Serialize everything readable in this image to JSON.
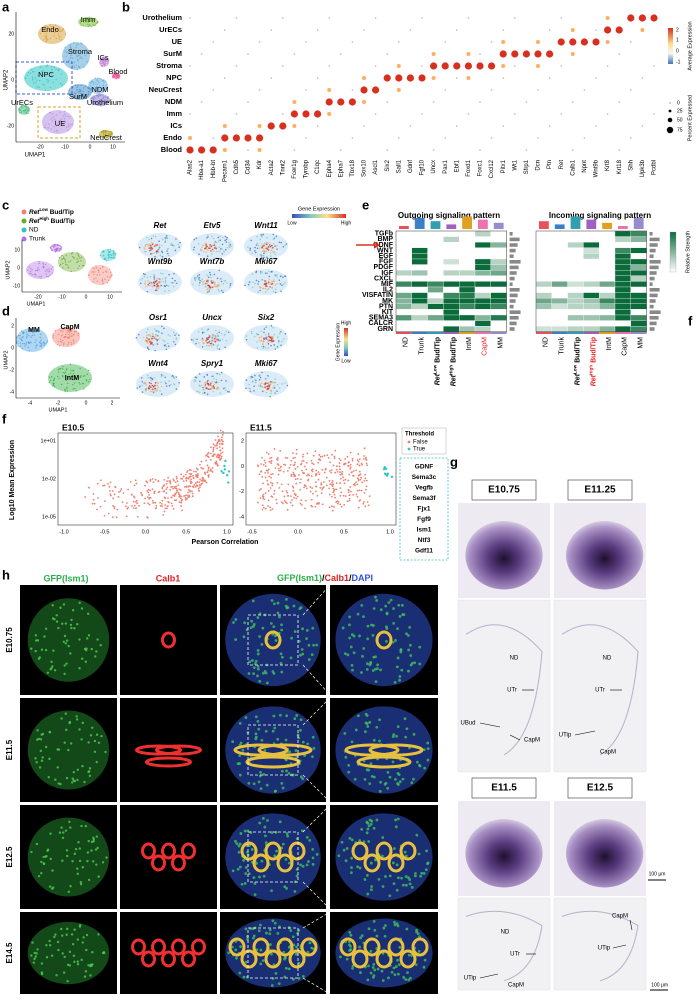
{
  "panel_labels": [
    "a",
    "b",
    "c",
    "d",
    "e",
    "f",
    "g",
    "h",
    "f"
  ],
  "a": {
    "clusters": [
      "Endo",
      "Imm",
      "Stroma",
      "ICs",
      "Blood",
      "NPC",
      "NDM",
      "SurM",
      "Urothelium",
      "UrECs",
      "UE",
      "NeuCrest"
    ],
    "x_axis": "UMAP1",
    "y_axis": "UMAP2",
    "xticks": [
      "-20",
      "-10",
      "0",
      "10"
    ],
    "yticks": [
      "20",
      "0",
      "-20"
    ]
  },
  "b": {
    "rows": [
      "Urothelium",
      "UrECs",
      "UE",
      "SurM",
      "Stroma",
      "NPC",
      "NeuCrest",
      "NDM",
      "Imm",
      "ICs",
      "Endo",
      "Blood"
    ],
    "genes": [
      "Alas2",
      "Hba-a1",
      "Hbb-bt",
      "Pecam1",
      "Cdh5",
      "Cd34",
      "Kdr",
      "Acta2",
      "Tnnt2",
      "Fcer1g",
      "Tyrobp",
      "C1qc",
      "Epha4",
      "Epha7",
      "Tbx18",
      "Sox10",
      "Ascl1",
      "Six2",
      "Sall1",
      "Gdnf",
      "Fgf10",
      "Uncx",
      "Pax1",
      "Ebf1",
      "Foxd1",
      "Foxc1",
      "Cxcl12",
      "Pitx1",
      "Wt1",
      "Sfrp1",
      "Dcn",
      "Ptn",
      "Ret",
      "Calb1",
      "Npnt",
      "Wnt9b",
      "Krt8",
      "Krt18",
      "Shh",
      "Upk3b",
      "Pcdbl"
    ],
    "color_legend": {
      "title": "Average Expression",
      "ticks": [
        "2",
        "1",
        "0",
        "-1"
      ]
    },
    "size_legend": {
      "title": "Percent Expressed",
      "ticks": [
        "0",
        "25",
        "50",
        "75"
      ]
    }
  },
  "c": {
    "legend": [
      {
        "gene": "Ret",
        "sup": "Low",
        "rest": "Bud/Tip"
      },
      {
        "gene": "Ret",
        "sup": "High",
        "rest": "Bud/Tip"
      },
      {
        "text": "ND"
      },
      {
        "text": "Trunk"
      }
    ],
    "x_axis": "UMAP1",
    "y_axis": "UMAP2",
    "xticks": [
      "-20",
      "-10",
      "0",
      "10"
    ],
    "yticks": [
      "10",
      "0",
      "-10"
    ],
    "genes": [
      "Ret",
      "Etv5",
      "Wnt11",
      "Wnt9b",
      "Wnt7b",
      "Mki67"
    ],
    "scale": {
      "title": "Gene Expression",
      "low": "Low",
      "high": "High"
    }
  },
  "d": {
    "clusters": [
      "MM",
      "CapM",
      "IntM"
    ],
    "x_axis": "UMAP1",
    "y_axis": "UMAP2",
    "xticks": [
      "-4",
      "-2",
      "0",
      "2"
    ],
    "yticks": [
      "2",
      "0",
      "-2",
      "-4"
    ],
    "genes": [
      "Osr1",
      "Uncx",
      "Six2",
      "Wnt4",
      "Spry1",
      "Mki67"
    ],
    "scale": {
      "title": "Gene Expression",
      "high": "High",
      "low": "Low"
    }
  },
  "e": {
    "pathways": [
      "TGFb",
      "BMP",
      "GDNF",
      "WNT",
      "EGF",
      "FGF",
      "PDGF",
      "IGF",
      "CXCL",
      "MIF",
      "IL2",
      "VISFATIN",
      "MK",
      "PTN",
      "KIT",
      "SEMA3",
      "CALCR",
      "GRN"
    ],
    "groups": [
      {
        "text": "ND"
      },
      {
        "text": "Trunk"
      },
      {
        "gene": "Ret",
        "sup": "Low",
        "rest": "Bud/Tip"
      },
      {
        "gene": "Ret",
        "sup": "High",
        "rest": "Bud/Tip"
      },
      {
        "text": "IntM"
      },
      {
        "text": "CapM"
      },
      {
        "text": "MM"
      }
    ],
    "scale": {
      "title": "Relative Strength"
    },
    "outgoing": {
      "title": "Outgoing signaling pattern",
      "values": [
        [
          0,
          0,
          0,
          0,
          0,
          0.3,
          0
        ],
        [
          0,
          0,
          0,
          0.3,
          0,
          0,
          0
        ],
        [
          0,
          0,
          0,
          0,
          0,
          1,
          0.5
        ],
        [
          0,
          1,
          0,
          0,
          0,
          0,
          0
        ],
        [
          0,
          1,
          0,
          0,
          0,
          0,
          0
        ],
        [
          0,
          1,
          0,
          0.2,
          0,
          1,
          0.3
        ],
        [
          0,
          0,
          0,
          0,
          0,
          1,
          0.4
        ],
        [
          0.3,
          0.4,
          0,
          0.3,
          0.3,
          0.5,
          0.6
        ],
        [
          0,
          0,
          0,
          0,
          0,
          0,
          0
        ],
        [
          0.8,
          1,
          0.8,
          1,
          1,
          1,
          1
        ],
        [
          0,
          0,
          0.6,
          0,
          1,
          0,
          0
        ],
        [
          0.6,
          1,
          0,
          0.8,
          0.9,
          0.3,
          1
        ],
        [
          0.5,
          1,
          0.3,
          1,
          1,
          1,
          1
        ],
        [
          0.5,
          0.3,
          1,
          1,
          0.8,
          1,
          0.8
        ],
        [
          0,
          0,
          0,
          1,
          0,
          0,
          0
        ],
        [
          0.7,
          0.3,
          0.6,
          1,
          1,
          0.5,
          0.9
        ],
        [
          0,
          0,
          0,
          0,
          0,
          1,
          0
        ],
        [
          0,
          0,
          0,
          1,
          0.4,
          0.3,
          0
        ]
      ]
    },
    "incoming": {
      "title": "Incoming signaling pattern",
      "values": [
        [
          0,
          0,
          0,
          0,
          0,
          1,
          0.8
        ],
        [
          0,
          0,
          0,
          0,
          0,
          0.3,
          0.5
        ],
        [
          0,
          0,
          0.3,
          1,
          0,
          0,
          0
        ],
        [
          0,
          0,
          0,
          0.2,
          0,
          0.8,
          1
        ],
        [
          0,
          0,
          0,
          0.3,
          0,
          1,
          0
        ],
        [
          0,
          0,
          0,
          0,
          0,
          1,
          1
        ],
        [
          0,
          0,
          0,
          0,
          0,
          1,
          0.5
        ],
        [
          0,
          0,
          0,
          0,
          0,
          1,
          1
        ],
        [
          0,
          0,
          0,
          0,
          0,
          1,
          0.3
        ],
        [
          0.3,
          0.6,
          0.2,
          0.3,
          0.6,
          1,
          1
        ],
        [
          0,
          0,
          0,
          0,
          0,
          1,
          0
        ],
        [
          0.3,
          0,
          0.3,
          1,
          0.3,
          1,
          1
        ],
        [
          0.6,
          0.5,
          0.3,
          0.4,
          0.8,
          1,
          1
        ],
        [
          0.4,
          0.2,
          0.3,
          0.3,
          0.5,
          1,
          1
        ],
        [
          0,
          0,
          0,
          0,
          0,
          1,
          0
        ],
        [
          0,
          0,
          0.4,
          0.4,
          0.5,
          1,
          0.8
        ],
        [
          0,
          0,
          0,
          0,
          0,
          0,
          1
        ],
        [
          0.2,
          0.2,
          0.3,
          0.3,
          0.5,
          1,
          0.8
        ]
      ]
    }
  },
  "f": {
    "plots": [
      {
        "title": "E10.5",
        "yticks": [
          "1e+01",
          "1e-02",
          "1e-05"
        ],
        "xticks": [
          "-1.0",
          "-0.5",
          "0.0",
          "0.5",
          "1.0"
        ]
      },
      {
        "title": "E11.5",
        "yticks": [
          "2",
          "0",
          "-2",
          "-4"
        ],
        "xticks": [
          "-0.5",
          "0.0",
          "0.5",
          "1.0"
        ]
      }
    ],
    "y_axis": "Log10 Mean Expression",
    "x_axis": "Pearson Correlation",
    "legend": {
      "title": "Threshold",
      "items": [
        "False",
        "True"
      ]
    },
    "genes": [
      "GDNF",
      "Sema3c",
      "Vegfb",
      "Sema3f",
      "Fjx1",
      "Fgf9",
      "Ism1",
      "Ntf3",
      "Gdf11"
    ]
  },
  "g": {
    "stages": [
      "E10.75",
      "E11.25",
      "E11.5",
      "E12.5"
    ],
    "annotations": [
      "ND",
      "UTr",
      "UBud",
      "CapM",
      "ND",
      "UTr",
      "UTip",
      "CapM",
      "ND",
      "UTr",
      "UTip",
      "CapM",
      "CapM",
      "UTip"
    ],
    "scale_bars": [
      "100 μm",
      "100 μm"
    ]
  },
  "h": {
    "columns": [
      [
        "GFP(Ism1)"
      ],
      [
        "Calb1"
      ],
      [
        "GFP(Ism1)",
        "/",
        "Calb1",
        "/",
        "DAPI"
      ]
    ],
    "rows": [
      "E10.75",
      "E11.5",
      "E12.5",
      "E14.5"
    ]
  }
}
